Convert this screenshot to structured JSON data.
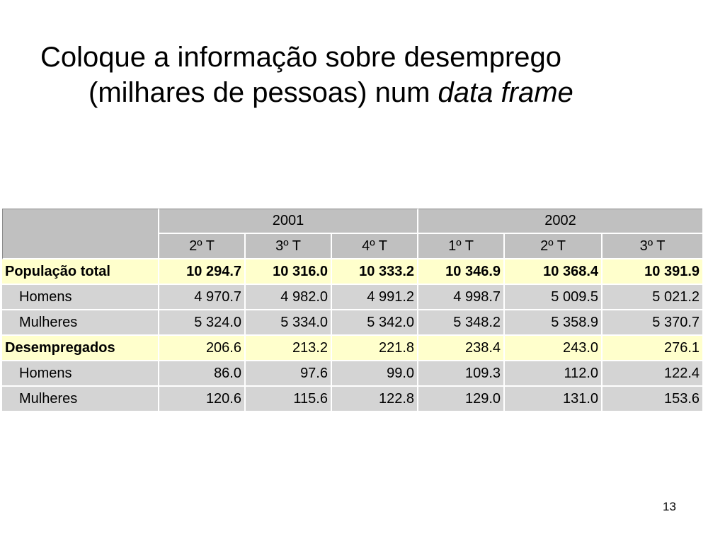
{
  "slide": {
    "title_line1": "Coloque a informação sobre desemprego",
    "title_line2_prefix": "(milhares de pessoas) num ",
    "title_line2_emph": "data frame",
    "page_number": "13"
  },
  "table": {
    "years": [
      "2001",
      "2002"
    ],
    "quarters": [
      "2º T",
      "3º T",
      "4º T",
      "1º T",
      "2º T",
      "3º T"
    ],
    "rows": [
      {
        "label": "População total",
        "values": [
          "10 294.7",
          "10 316.0",
          "10 333.2",
          "10 346.9",
          "10 368.4",
          "10 391.9"
        ]
      },
      {
        "label": "Homens",
        "values": [
          "4 970.7",
          "4 982.0",
          "4 991.2",
          "4 998.7",
          "5 009.5",
          "5 021.2"
        ]
      },
      {
        "label": "Mulheres",
        "values": [
          "5 324.0",
          "5 334.0",
          "5 342.0",
          "5 348.2",
          "5 358.9",
          "5 370.7"
        ]
      },
      {
        "label": "Desempregados",
        "values": [
          "206.6",
          "213.2",
          "221.8",
          "238.4",
          "243.0",
          "276.1"
        ]
      },
      {
        "label": "Homens",
        "values": [
          "86.0",
          "97.6",
          "99.0",
          "109.3",
          "112.0",
          "122.4"
        ]
      },
      {
        "label": "Mulheres",
        "values": [
          "120.6",
          "115.6",
          "122.8",
          "129.0",
          "131.0",
          "153.6"
        ]
      }
    ]
  },
  "colors": {
    "header_bg": "#c0c0c0",
    "total_row_bg": "#ffffcc",
    "sub_row_bg": "#d4d4d4"
  }
}
